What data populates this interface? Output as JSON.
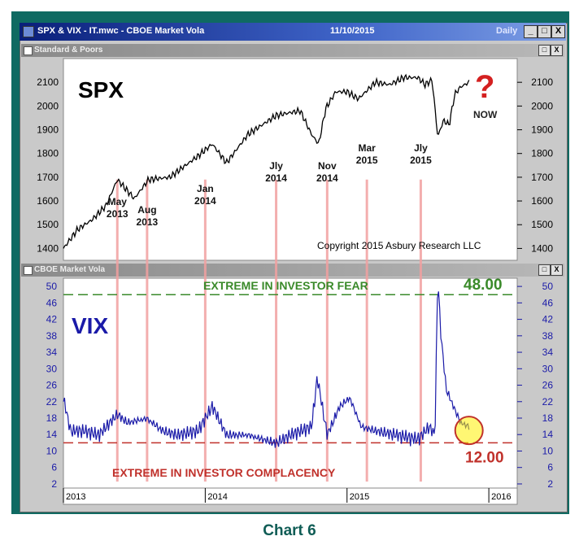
{
  "window": {
    "title": "SPX & VIX - IT.mwc - CBOE Market Vola",
    "date": "11/10/2015",
    "interval": "Daily",
    "minimize_label": "_",
    "maximize_label": "□",
    "close_label": "X"
  },
  "caption": "Chart 6",
  "colors": {
    "frame": "#0f6a62",
    "spx_line": "#000000",
    "vix_line": "#1a1aa8",
    "marker_line": "#f2a0a0",
    "fear": "#3a8a2a",
    "complacency": "#c0312b"
  },
  "chart_data": [
    {
      "type": "line",
      "pane_title": "Standard & Poors",
      "label": "SPX",
      "question_mark": "?",
      "now_label": "NOW",
      "copyright": "Copyright 2015 Asbury Research LLC",
      "ylim": [
        1350,
        2200
      ],
      "yticks": [
        "2100",
        "2000",
        "1900",
        "1800",
        "1700",
        "1600",
        "1500",
        "1400"
      ],
      "x": [
        2013.0,
        2013.1,
        2013.2,
        2013.3,
        2013.38,
        2013.5,
        2013.6,
        2013.75,
        2013.95,
        2014.05,
        2014.15,
        2014.3,
        2014.4,
        2014.5,
        2014.58,
        2014.67,
        2014.75,
        2014.8,
        2014.85,
        2014.92,
        2015.0,
        2015.08,
        2015.2,
        2015.3,
        2015.4,
        2015.5,
        2015.55,
        2015.6,
        2015.64,
        2015.68,
        2015.72,
        2015.76,
        2015.8,
        2015.86
      ],
      "y": [
        1400,
        1480,
        1520,
        1580,
        1690,
        1610,
        1690,
        1700,
        1790,
        1840,
        1760,
        1880,
        1920,
        1960,
        1970,
        1980,
        1880,
        1840,
        1990,
        2060,
        2060,
        2030,
        2100,
        2090,
        2120,
        2120,
        2090,
        2110,
        1870,
        1940,
        1920,
        2050,
        2080,
        2100
      ],
      "annotations": [
        {
          "label": [
            "May",
            "2013"
          ],
          "x": 2013.38
        },
        {
          "label": [
            "Aug",
            "2013"
          ],
          "x": 2013.59
        },
        {
          "label": [
            "Jan",
            "2014"
          ],
          "x": 2014.0
        },
        {
          "label": [
            "Jly",
            "2014"
          ],
          "x": 2014.5
        },
        {
          "label": [
            "Nov",
            "2014"
          ],
          "x": 2014.86
        },
        {
          "label": [
            "Mar",
            "2015"
          ],
          "x": 2015.14
        },
        {
          "label": [
            "Jly",
            "2015"
          ],
          "x": 2015.52
        }
      ]
    },
    {
      "type": "line",
      "pane_title": "CBOE Market Vola",
      "label": "VIX",
      "ylim": [
        1,
        52
      ],
      "yticks": [
        "50",
        "46",
        "42",
        "38",
        "34",
        "30",
        "26",
        "22",
        "18",
        "14",
        "10",
        "6",
        "2"
      ],
      "fear_level": 48.0,
      "fear_value_label": "48.00",
      "fear_text": "EXTREME IN INVESTOR FEAR",
      "complacency_level": 12.0,
      "complacency_value_label": "12.00",
      "complacency_text": "EXTREME IN INVESTOR COMPLACENCY",
      "x": [
        2013.0,
        2013.05,
        2013.15,
        2013.25,
        2013.38,
        2013.45,
        2013.59,
        2013.7,
        2013.8,
        2013.95,
        2014.05,
        2014.15,
        2014.3,
        2014.4,
        2014.5,
        2014.6,
        2014.75,
        2014.79,
        2014.86,
        2014.95,
        2015.02,
        2015.1,
        2015.2,
        2015.35,
        2015.5,
        2015.58,
        2015.62,
        2015.64,
        2015.66,
        2015.7,
        2015.75,
        2015.8,
        2015.86
      ],
      "y": [
        22,
        14,
        14,
        13,
        18,
        16,
        17,
        14,
        13,
        14,
        20,
        13,
        13,
        12,
        11,
        13,
        15,
        27,
        13,
        20,
        22,
        15,
        14,
        13,
        12,
        15,
        13,
        52,
        38,
        24,
        20,
        16,
        15
      ],
      "xtick_labels": [
        "2013",
        "2014",
        "2015",
        "2016"
      ],
      "xticks": [
        2013,
        2014,
        2015,
        2016
      ]
    }
  ]
}
